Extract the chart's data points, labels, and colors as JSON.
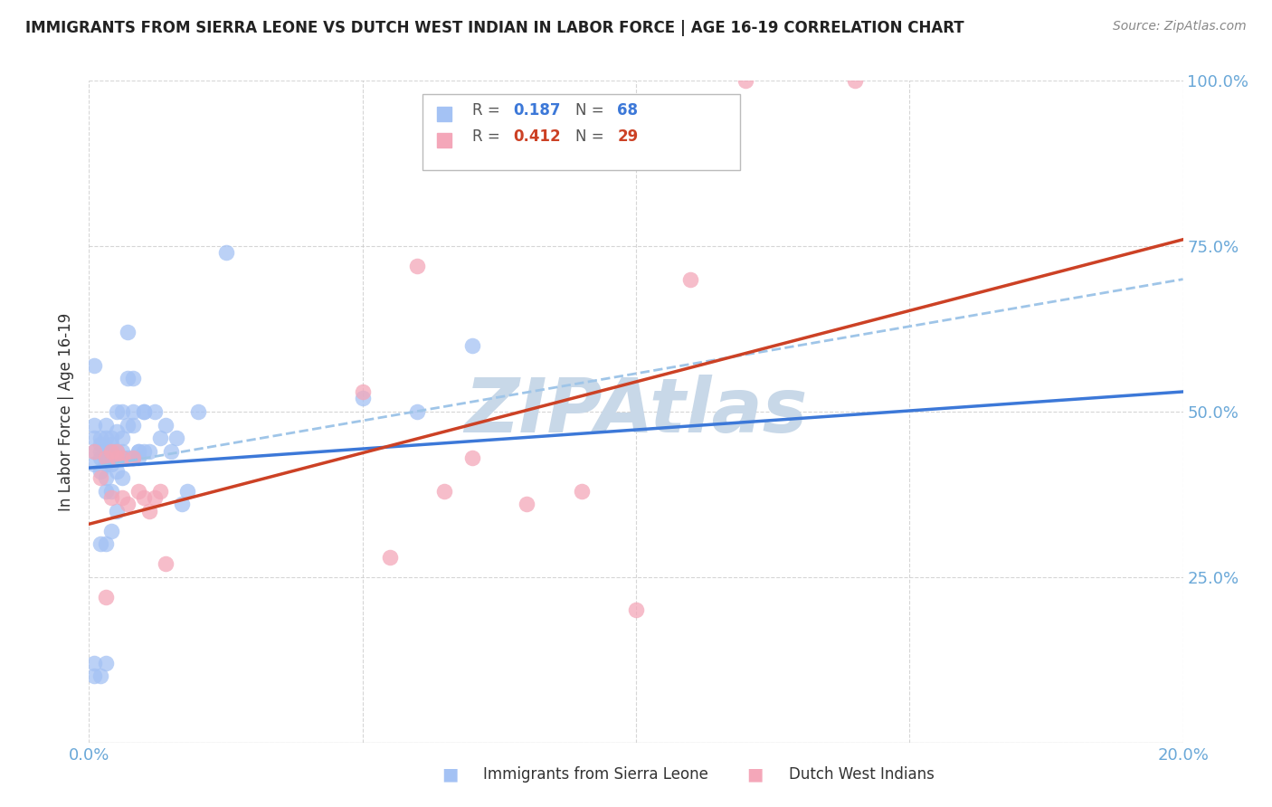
{
  "title": "IMMIGRANTS FROM SIERRA LEONE VS DUTCH WEST INDIAN IN LABOR FORCE | AGE 16-19 CORRELATION CHART",
  "source": "Source: ZipAtlas.com",
  "ylabel": "In Labor Force | Age 16-19",
  "xlim": [
    0.0,
    0.2
  ],
  "ylim": [
    0.0,
    1.0
  ],
  "x_ticks": [
    0.0,
    0.05,
    0.1,
    0.15,
    0.2
  ],
  "y_ticks": [
    0.0,
    0.25,
    0.5,
    0.75,
    1.0
  ],
  "sierra_leone_R": 0.187,
  "sierra_leone_N": 68,
  "dutch_west_R": 0.412,
  "dutch_west_N": 29,
  "sierra_leone_color": "#a4c2f4",
  "dutch_west_color": "#f4a7b9",
  "sierra_leone_line_color": "#3c78d8",
  "dutch_west_line_color": "#cc4125",
  "dashed_line_color": "#9fc5e8",
  "watermark": "ZIPAtlas",
  "watermark_color": "#c8d8e8",
  "tick_color": "#6aa8d8",
  "title_color": "#222222",
  "source_color": "#888888",
  "sierra_leone_x": [
    0.001,
    0.001,
    0.001,
    0.001,
    0.002,
    0.002,
    0.002,
    0.002,
    0.002,
    0.003,
    0.003,
    0.003,
    0.003,
    0.003,
    0.003,
    0.003,
    0.004,
    0.004,
    0.004,
    0.004,
    0.004,
    0.004,
    0.005,
    0.005,
    0.005,
    0.005,
    0.005,
    0.006,
    0.006,
    0.006,
    0.006,
    0.007,
    0.007,
    0.007,
    0.008,
    0.008,
    0.008,
    0.009,
    0.009,
    0.01,
    0.01,
    0.011,
    0.012,
    0.013,
    0.014,
    0.015,
    0.016,
    0.017,
    0.018,
    0.001,
    0.002,
    0.003,
    0.004,
    0.005,
    0.006,
    0.007,
    0.008,
    0.009,
    0.01,
    0.02,
    0.025,
    0.05,
    0.06,
    0.07,
    0.001,
    0.001,
    0.002,
    0.003
  ],
  "sierra_leone_y": [
    0.44,
    0.46,
    0.42,
    0.48,
    0.44,
    0.46,
    0.43,
    0.45,
    0.41,
    0.44,
    0.43,
    0.42,
    0.46,
    0.48,
    0.4,
    0.38,
    0.44,
    0.43,
    0.45,
    0.42,
    0.46,
    0.38,
    0.44,
    0.43,
    0.47,
    0.41,
    0.5,
    0.44,
    0.43,
    0.46,
    0.4,
    0.55,
    0.43,
    0.48,
    0.55,
    0.43,
    0.48,
    0.44,
    0.43,
    0.44,
    0.5,
    0.44,
    0.5,
    0.46,
    0.48,
    0.44,
    0.46,
    0.36,
    0.38,
    0.57,
    0.3,
    0.3,
    0.32,
    0.35,
    0.5,
    0.62,
    0.5,
    0.44,
    0.5,
    0.5,
    0.74,
    0.52,
    0.5,
    0.6,
    0.1,
    0.12,
    0.1,
    0.12
  ],
  "dutch_west_x": [
    0.001,
    0.002,
    0.003,
    0.003,
    0.004,
    0.004,
    0.005,
    0.005,
    0.006,
    0.006,
    0.007,
    0.008,
    0.009,
    0.01,
    0.011,
    0.012,
    0.013,
    0.014,
    0.05,
    0.055,
    0.06,
    0.065,
    0.07,
    0.08,
    0.09,
    0.1,
    0.11,
    0.12,
    0.14
  ],
  "dutch_west_y": [
    0.44,
    0.4,
    0.43,
    0.22,
    0.37,
    0.44,
    0.43,
    0.44,
    0.43,
    0.37,
    0.36,
    0.43,
    0.38,
    0.37,
    0.35,
    0.37,
    0.38,
    0.27,
    0.53,
    0.28,
    0.72,
    0.38,
    0.43,
    0.36,
    0.38,
    0.2,
    0.7,
    1.0,
    1.0
  ],
  "sl_line_x0": 0.0,
  "sl_line_x1": 0.2,
  "sl_line_y0": 0.415,
  "sl_line_y1": 0.53,
  "dw_line_x0": 0.0,
  "dw_line_x1": 0.2,
  "dw_line_y0": 0.33,
  "dw_line_y1": 0.76,
  "dash_line_x0": 0.0,
  "dash_line_x1": 0.2,
  "dash_line_y0": 0.415,
  "dash_line_y1": 0.7
}
